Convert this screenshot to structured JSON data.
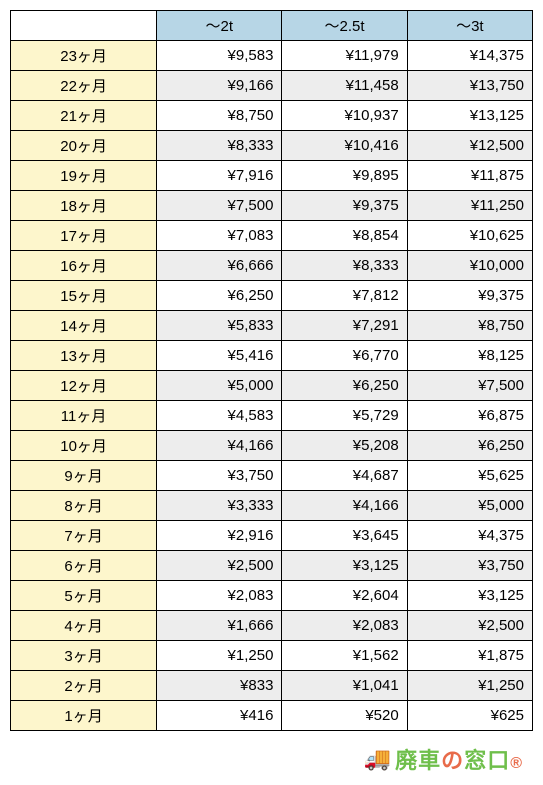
{
  "table": {
    "column_widths": [
      "28%",
      "24%",
      "24%",
      "24%"
    ],
    "header_bg": "#b7d6e6",
    "rowhead_bg": "#fdf6cc",
    "alt_bg": "#ededed",
    "border_color": "#000000",
    "columns": [
      "～2t",
      "～2.5t",
      "～3t"
    ],
    "rows": [
      {
        "label": "23ヶ月",
        "cells": [
          "¥9,583",
          "¥11,979",
          "¥14,375"
        ],
        "alt": false
      },
      {
        "label": "22ヶ月",
        "cells": [
          "¥9,166",
          "¥11,458",
          "¥13,750"
        ],
        "alt": true
      },
      {
        "label": "21ヶ月",
        "cells": [
          "¥8,750",
          "¥10,937",
          "¥13,125"
        ],
        "alt": false
      },
      {
        "label": "20ヶ月",
        "cells": [
          "¥8,333",
          "¥10,416",
          "¥12,500"
        ],
        "alt": true
      },
      {
        "label": "19ヶ月",
        "cells": [
          "¥7,916",
          "¥9,895",
          "¥11,875"
        ],
        "alt": false
      },
      {
        "label": "18ヶ月",
        "cells": [
          "¥7,500",
          "¥9,375",
          "¥11,250"
        ],
        "alt": true
      },
      {
        "label": "17ヶ月",
        "cells": [
          "¥7,083",
          "¥8,854",
          "¥10,625"
        ],
        "alt": false
      },
      {
        "label": "16ヶ月",
        "cells": [
          "¥6,666",
          "¥8,333",
          "¥10,000"
        ],
        "alt": true
      },
      {
        "label": "15ヶ月",
        "cells": [
          "¥6,250",
          "¥7,812",
          "¥9,375"
        ],
        "alt": false
      },
      {
        "label": "14ヶ月",
        "cells": [
          "¥5,833",
          "¥7,291",
          "¥8,750"
        ],
        "alt": true
      },
      {
        "label": "13ヶ月",
        "cells": [
          "¥5,416",
          "¥6,770",
          "¥8,125"
        ],
        "alt": false
      },
      {
        "label": "12ヶ月",
        "cells": [
          "¥5,000",
          "¥6,250",
          "¥7,500"
        ],
        "alt": true
      },
      {
        "label": "11ヶ月",
        "cells": [
          "¥4,583",
          "¥5,729",
          "¥6,875"
        ],
        "alt": false
      },
      {
        "label": "10ヶ月",
        "cells": [
          "¥4,166",
          "¥5,208",
          "¥6,250"
        ],
        "alt": true
      },
      {
        "label": "9ヶ月",
        "cells": [
          "¥3,750",
          "¥4,687",
          "¥5,625"
        ],
        "alt": false
      },
      {
        "label": "8ヶ月",
        "cells": [
          "¥3,333",
          "¥4,166",
          "¥5,000"
        ],
        "alt": true
      },
      {
        "label": "7ヶ月",
        "cells": [
          "¥2,916",
          "¥3,645",
          "¥4,375"
        ],
        "alt": false
      },
      {
        "label": "6ヶ月",
        "cells": [
          "¥2,500",
          "¥3,125",
          "¥3,750"
        ],
        "alt": true
      },
      {
        "label": "5ヶ月",
        "cells": [
          "¥2,083",
          "¥2,604",
          "¥3,125"
        ],
        "alt": false
      },
      {
        "label": "4ヶ月",
        "cells": [
          "¥1,666",
          "¥2,083",
          "¥2,500"
        ],
        "alt": true
      },
      {
        "label": "3ヶ月",
        "cells": [
          "¥1,250",
          "¥1,562",
          "¥1,875"
        ],
        "alt": false
      },
      {
        "label": "2ヶ月",
        "cells": [
          "¥833",
          "¥1,041",
          "¥1,250"
        ],
        "alt": true
      },
      {
        "label": "1ヶ月",
        "cells": [
          "¥416",
          "¥520",
          "¥625"
        ],
        "alt": false
      }
    ]
  },
  "footer": {
    "brand_parts": {
      "a": "廃車",
      "b": "の",
      "c": "窓口"
    },
    "truck_glyph": "🚚",
    "colors": {
      "green": "#6fbf4b",
      "orange": "#e86b4a"
    }
  }
}
